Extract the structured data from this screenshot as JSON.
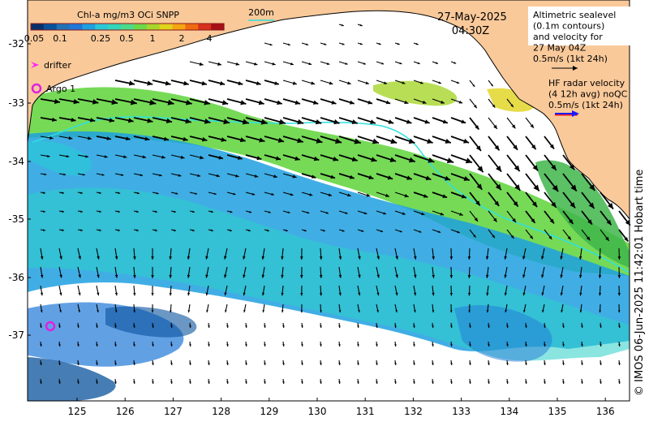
{
  "map": {
    "colorbar": {
      "title": "Chl-a mg/m3 OCi SNPP",
      "tick_labels": [
        "0.05",
        "0.1",
        "0.25",
        "0.5",
        "1",
        "2",
        "4"
      ],
      "colors": [
        "#08306b",
        "#08519c",
        "#2171b5",
        "#1f78d8",
        "#1ea0e0",
        "#29c8d8",
        "#33d6b8",
        "#4cdb8a",
        "#6cd84a",
        "#a6d62b",
        "#e0d31c",
        "#f5a614",
        "#ef6a10",
        "#d7301f",
        "#a50f15"
      ]
    },
    "date": "27-May-2025",
    "time": "04:30Z",
    "isobath_label": "200m",
    "altimetry_note": [
      "Altimetric sealevel",
      "(0.1m contours)",
      "and velocity for",
      "27 May 04Z",
      "0.5m/s (1kt 24h)"
    ],
    "hf_radar_note": [
      "HF radar velocity",
      "(4 12h avg) noQC",
      "0.5m/s (1kt 24h)"
    ],
    "legend": {
      "drifter": "drifter",
      "argo": "Argo 1"
    },
    "credit": "© IMOS 06-Jun-2025 11:42:01 Hobart time",
    "lat_ticks": [
      "-32",
      "-33",
      "-34",
      "-35",
      "-36",
      "-37"
    ],
    "lon_ticks": [
      "125",
      "126",
      "127",
      "128",
      "129",
      "130",
      "131",
      "132",
      "133",
      "134",
      "135",
      "136"
    ],
    "colors": {
      "land": "#f9c99a",
      "isobath": "#2fe0e0",
      "drifter": "#ff22ff",
      "argo": "#e020e0",
      "hf_arrow_red": "#ff1a1a",
      "hf_arrow_blue": "#1a1aff",
      "colorbar_frame": "#8b1a1a"
    }
  }
}
